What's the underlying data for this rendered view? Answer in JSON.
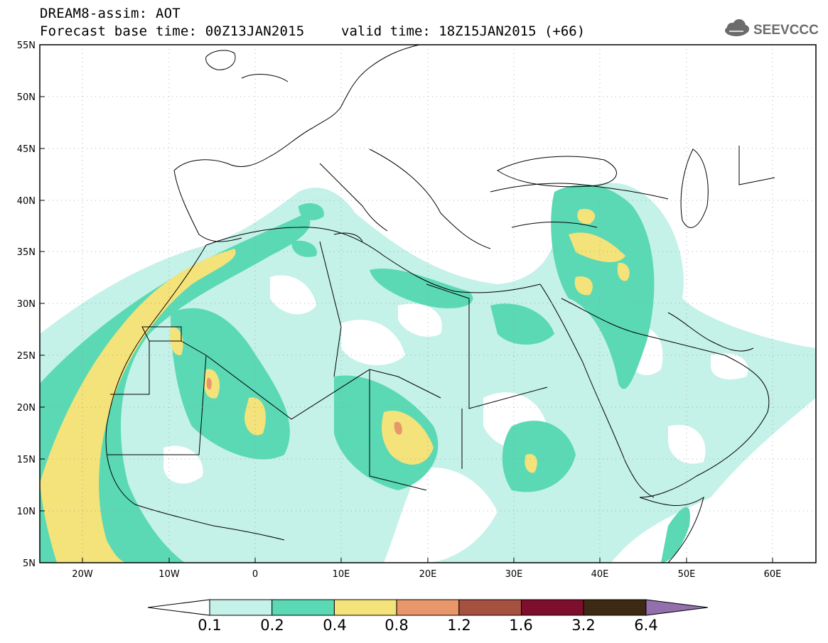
{
  "header": {
    "title": "DREAM8-assim: AOT",
    "base_time": "Forecast base time: 00Z13JAN2015",
    "valid_time": "valid time: 18Z15JAN2015 (+66)"
  },
  "logo": {
    "text": "SEEVCCC",
    "icon": "cloud-icon"
  },
  "map": {
    "variable": "AOT",
    "lat_ticks": [
      "55N",
      "50N",
      "45N",
      "40N",
      "35N",
      "30N",
      "25N",
      "20N",
      "15N",
      "10N",
      "5N"
    ],
    "lon_ticks": [
      "20W",
      "10W",
      "0",
      "10E",
      "20E",
      "30E",
      "40E",
      "50E",
      "60E"
    ],
    "extent": {
      "lon": [
        -25,
        65
      ],
      "lat": [
        5,
        55
      ]
    }
  },
  "colorbar": {
    "labels": [
      "0.1",
      "0.2",
      "0.4",
      "0.8",
      "1.2",
      "1.6",
      "3.2",
      "6.4"
    ],
    "colors": [
      "#ffffff",
      "#c4f1e8",
      "#5ad9b4",
      "#f4e27a",
      "#e8966a",
      "#a65040",
      "#7d0f2c",
      "#3d2a14",
      "#9270ad"
    ]
  }
}
